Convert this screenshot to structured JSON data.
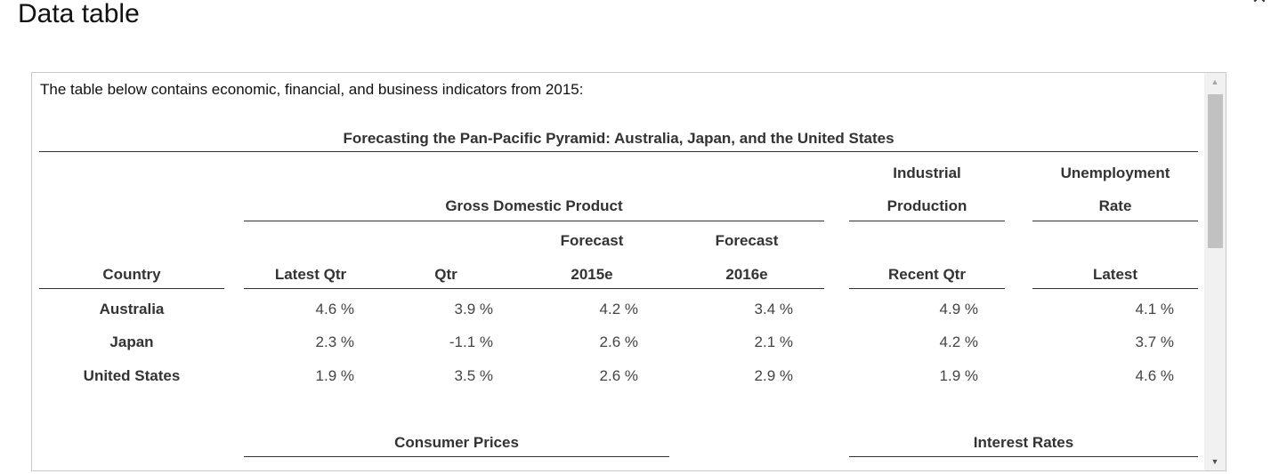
{
  "dialog": {
    "title": "Data table",
    "close_symbol": "✕"
  },
  "intro": "The table below contains economic, financial, and business indicators from 2015:",
  "table": {
    "caption": "Forecasting the Pan-Pacific Pyramid: Australia, Japan, and the United States",
    "group_headers": {
      "gdp": "Gross Domestic Product",
      "industrial_line1": "Industrial",
      "industrial_line2": "Production",
      "unemployment_line1": "Unemployment",
      "unemployment_line2": "Rate",
      "consumer_prices": "Consumer Prices",
      "interest_rates": "Interest Rates"
    },
    "columns": {
      "country": "Country",
      "latest_qtr": "Latest Qtr",
      "qtr": "Qtr",
      "forecast_2015_top": "Forecast",
      "forecast_2015": "2015e",
      "forecast_2016_top": "Forecast",
      "forecast_2016": "2016e",
      "recent_qtr": "Recent Qtr",
      "latest": "Latest"
    },
    "rows": [
      {
        "country": "Australia",
        "latest_qtr": "4.6 %",
        "qtr": "3.9 %",
        "f2015": "4.2 %",
        "f2016": "3.4 %",
        "ind": "4.9 %",
        "unemp": "4.1 %"
      },
      {
        "country": "Japan",
        "latest_qtr": "2.3 %",
        "qtr": "-1.1 %",
        "f2015": "2.6 %",
        "f2016": "2.1 %",
        "ind": "4.2 %",
        "unemp": "3.7 %"
      },
      {
        "country": "United States",
        "latest_qtr": "1.9 %",
        "qtr": "3.5 %",
        "f2015": "2.6 %",
        "f2016": "2.9 %",
        "ind": "1.9 %",
        "unemp": "4.6 %"
      }
    ]
  }
}
